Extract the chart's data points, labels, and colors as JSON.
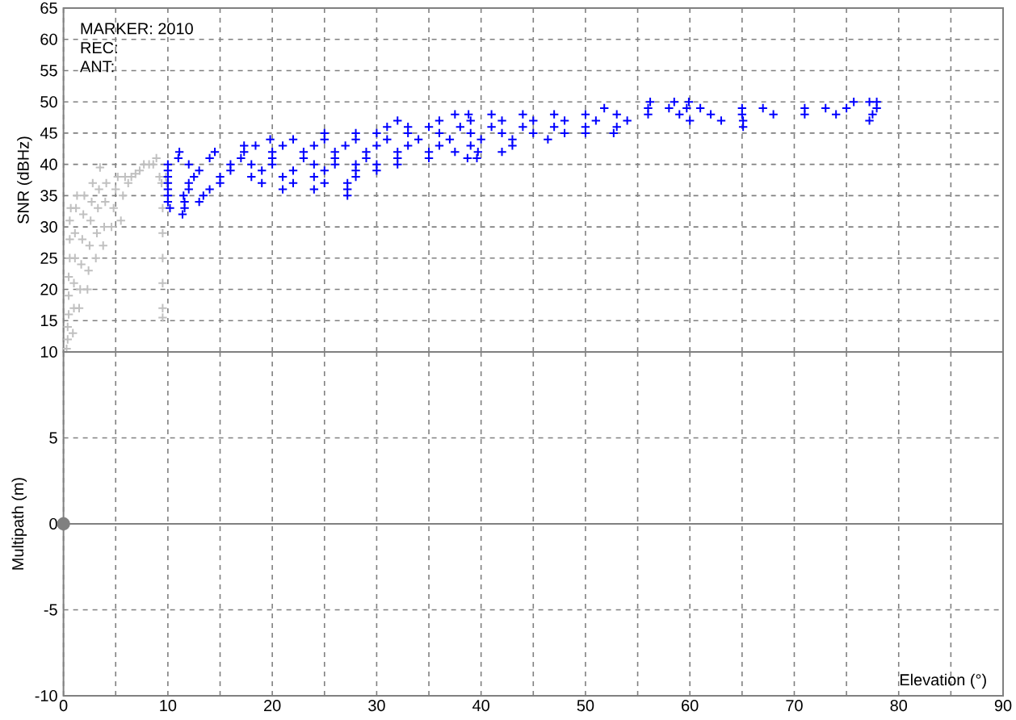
{
  "chart_data": [
    {
      "type": "scatter",
      "ylabel": "SNR (dBHz)",
      "annotations": [
        "MARKER: 2010",
        "REC:",
        "ANT:"
      ],
      "series": [
        {
          "color": "#c0c0c0",
          "x": [
            0.3,
            0.4,
            0.4,
            0.5,
            0.5,
            0.5,
            0.6,
            0.6,
            0.6,
            0.7,
            0.9,
            1,
            1,
            1.1,
            1.1,
            1.2,
            1.3,
            1.5,
            1.6,
            1.7,
            1.8,
            1.9,
            2,
            2.3,
            2.4,
            2.5,
            2.6,
            2.7,
            2.8,
            3.1,
            3.2,
            3.3,
            3.4,
            3.5,
            3.8,
            3.9,
            4,
            4.1,
            4.6,
            4.8,
            5,
            5.2,
            5.5,
            5.7,
            5.9,
            6.2,
            6.5,
            6.9,
            7.3,
            7.7,
            8.2,
            8.6,
            8.9,
            9.2,
            9.4,
            9.5,
            9.5,
            9.5,
            9.5,
            9.5,
            9.5,
            9.8,
            9.9
          ],
          "values": [
            10.5,
            12,
            14,
            16,
            19,
            22,
            25,
            28,
            31,
            33,
            13,
            17,
            21,
            25,
            29,
            33,
            35,
            17,
            20,
            24,
            28,
            32,
            35,
            20,
            23,
            27,
            31,
            34,
            37,
            25,
            29,
            33,
            36,
            39.5,
            27,
            30,
            34,
            37,
            30,
            33,
            36,
            38,
            31,
            35,
            38,
            37,
            38,
            38.5,
            39,
            40,
            40,
            40,
            41,
            38,
            37,
            33,
            29,
            25,
            21,
            17,
            15.5,
            38,
            37
          ]
        },
        {
          "color": "#0000ff",
          "x": [
            56.2,
            58.5,
            59.9,
            75.7,
            77.2,
            77.9,
            51.8,
            56,
            58,
            59.7,
            61,
            65,
            67,
            71,
            73,
            75,
            77.9,
            37.5,
            38.8,
            41,
            44,
            47,
            50,
            53,
            56,
            59,
            62,
            65,
            68,
            71,
            74,
            77.5,
            32,
            36,
            39,
            42,
            45,
            48,
            51,
            54,
            60,
            63,
            65.1,
            77.2,
            31,
            33,
            35,
            38,
            41,
            44,
            47,
            50,
            53,
            65.1,
            25,
            28,
            30,
            33,
            36,
            39,
            42,
            45,
            48,
            50,
            52.7,
            19.8,
            22,
            25,
            28,
            31,
            34,
            37,
            40,
            43,
            46.4,
            17.3,
            18.4,
            21,
            24,
            27,
            30,
            33,
            36,
            39,
            43,
            11.1,
            14.5,
            17.3,
            20,
            23,
            26,
            29,
            32,
            35,
            37.5,
            39.7,
            42,
            11,
            14,
            17,
            20,
            23,
            26,
            29,
            32,
            35,
            38.7,
            39.6,
            10,
            12,
            16,
            18,
            20,
            24,
            26,
            28,
            30,
            32,
            10,
            13,
            16,
            19,
            22,
            25,
            28,
            30,
            10,
            12.5,
            15,
            18,
            21,
            24,
            28,
            10,
            12,
            15,
            19,
            22,
            25,
            27.2,
            10,
            12,
            14,
            21,
            24,
            27.2,
            10,
            11.5,
            13.4,
            27.2,
            10,
            11.6,
            13,
            10.2,
            11.6,
            11.4
          ],
          "values": [
            50,
            50,
            50,
            50,
            50,
            50,
            49,
            49,
            49,
            49,
            49,
            49,
            49,
            49,
            49,
            49,
            49,
            48,
            48,
            48,
            48,
            48,
            48,
            48,
            48,
            48,
            48,
            48,
            48,
            48,
            48,
            48,
            47,
            47,
            47,
            47,
            47,
            47,
            47,
            47,
            47,
            47,
            47,
            47,
            46,
            46,
            46,
            46,
            46,
            46,
            46,
            46,
            46,
            46,
            45,
            45,
            45,
            45,
            45,
            45,
            45,
            45,
            45,
            45,
            45,
            44,
            44,
            44,
            44,
            44,
            44,
            44,
            44,
            44,
            44,
            43,
            43,
            43,
            43,
            43,
            43,
            43,
            43,
            43,
            43,
            42,
            42,
            42,
            42,
            42,
            42,
            42,
            42,
            42,
            42,
            42,
            42,
            41,
            41,
            41,
            41,
            41,
            41,
            41,
            41,
            41,
            41,
            41,
            40,
            40,
            40,
            40,
            40,
            40,
            40,
            40,
            40,
            40,
            39,
            39,
            39,
            39,
            39,
            39,
            39,
            39,
            38,
            38,
            38,
            38,
            38,
            38,
            38,
            37,
            37,
            37,
            37,
            37,
            37,
            37,
            36,
            36,
            36,
            36,
            36,
            36,
            35,
            35,
            35,
            35,
            34,
            34,
            34,
            33,
            33,
            32
          ]
        }
      ],
      "xlim": [
        0,
        90
      ],
      "ylim": [
        10,
        65
      ],
      "xticks": [
        0,
        {
          "value": 5,
          "label": null
        },
        10,
        {
          "value": 15,
          "label": null
        },
        20,
        {
          "value": 25,
          "label": null
        },
        30,
        {
          "value": 35,
          "label": null
        },
        40,
        {
          "value": 45,
          "label": null
        },
        50,
        {
          "value": 55,
          "label": null
        },
        60,
        {
          "value": 65,
          "label": null
        },
        70,
        {
          "value": 75,
          "label": null
        },
        80,
        {
          "value": 85,
          "label": null
        },
        90
      ],
      "yticks": [
        10,
        15,
        20,
        25,
        30,
        35,
        40,
        45,
        50,
        55,
        60,
        65
      ],
      "grid": true,
      "marker": "cross",
      "tick_labels": "y"
    },
    {
      "type": "scatter",
      "xlabel": "Elevation (°)",
      "ylabel": "Multipath (m)",
      "series": [
        {
          "color": "#808080",
          "x": [
            0
          ],
          "values": [
            0
          ]
        }
      ],
      "xlim": [
        0,
        90
      ],
      "ylim": [
        -10,
        10
      ],
      "xticks": [
        0,
        {
          "value": 5,
          "label": null
        },
        10,
        {
          "value": 15,
          "label": null
        },
        20,
        {
          "value": 25,
          "label": null
        },
        30,
        {
          "value": 35,
          "label": null
        },
        40,
        {
          "value": 45,
          "label": null
        },
        50,
        {
          "value": 55,
          "label": null
        },
        60,
        {
          "value": 65,
          "label": null
        },
        70,
        {
          "value": 75,
          "label": null
        },
        80,
        {
          "value": 85,
          "label": null
        },
        90
      ],
      "yticks": [
        -10,
        -5,
        0,
        5
      ],
      "ref_lines": [
        {
          "axis": "y",
          "value": 0,
          "color": "#808080"
        }
      ],
      "grid": true,
      "marker": "circle"
    }
  ]
}
